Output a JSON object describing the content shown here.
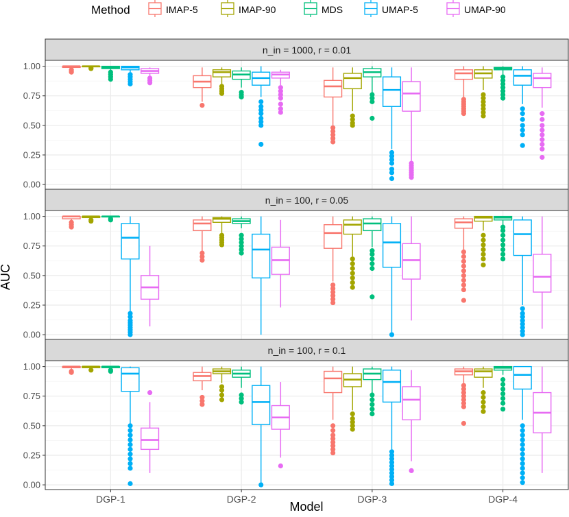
{
  "chart_data": {
    "type": "boxplot",
    "xlabel": "Model",
    "ylabel": "AUC",
    "ylim": [
      -0.04,
      1.05
    ],
    "yticks": [
      "0.00",
      "0.25",
      "0.50",
      "0.75",
      "1.00"
    ],
    "categories": [
      "DGP-1",
      "DGP-2",
      "DGP-3",
      "DGP-4"
    ],
    "legend": {
      "title": "Method",
      "position": "top",
      "entries": [
        {
          "name": "IMAP-5",
          "color": "#F8766D"
        },
        {
          "name": "IMAP-90",
          "color": "#A3A500"
        },
        {
          "name": "MDS",
          "color": "#00BF7D"
        },
        {
          "name": "UMAP-5",
          "color": "#00B0F6"
        },
        {
          "name": "UMAP-90",
          "color": "#E76BF3"
        }
      ]
    },
    "panels": [
      {
        "label": "n_in = 1000,  r = 0.01",
        "boxes": [
          [
            {
              "wlo": 0.97,
              "q1": 0.99,
              "med": 1.0,
              "q3": 1.0,
              "whi": 1.0,
              "out": [
                0.95,
                0.96,
                0.97
              ]
            },
            {
              "wlo": 0.99,
              "q1": 0.995,
              "med": 1.0,
              "q3": 1.0,
              "whi": 1.0,
              "out": [
                0.98,
                0.985
              ]
            },
            {
              "wlo": 0.97,
              "q1": 0.98,
              "med": 0.99,
              "q3": 1.0,
              "whi": 1.0,
              "out": [
                0.89,
                0.91,
                0.93,
                0.95
              ]
            },
            {
              "wlo": 0.95,
              "q1": 0.97,
              "med": 0.99,
              "q3": 1.0,
              "whi": 1.0,
              "out": [
                0.85,
                0.87,
                0.89,
                0.91,
                0.93
              ]
            },
            {
              "wlo": 0.92,
              "q1": 0.94,
              "med": 0.96,
              "q3": 0.98,
              "whi": 0.99,
              "out": [
                0.86,
                0.88,
                0.9
              ]
            }
          ],
          [
            {
              "wlo": 0.7,
              "q1": 0.82,
              "med": 0.87,
              "q3": 0.92,
              "whi": 0.99,
              "out": [
                0.67
              ]
            },
            {
              "wlo": 0.84,
              "q1": 0.91,
              "med": 0.95,
              "q3": 0.97,
              "whi": 0.99,
              "out": [
                0.77,
                0.79,
                0.81,
                0.83
              ]
            },
            {
              "wlo": 0.82,
              "q1": 0.89,
              "med": 0.93,
              "q3": 0.96,
              "whi": 0.99,
              "out": [
                0.74,
                0.76,
                0.78
              ]
            },
            {
              "wlo": 0.74,
              "q1": 0.84,
              "med": 0.9,
              "q3": 0.95,
              "whi": 1.0,
              "out": [
                0.34,
                0.5,
                0.53,
                0.56,
                0.6,
                0.63,
                0.66,
                0.7
              ]
            },
            {
              "wlo": 0.84,
              "q1": 0.9,
              "med": 0.93,
              "q3": 0.95,
              "whi": 0.97,
              "out": [
                0.61,
                0.64,
                0.68,
                0.73,
                0.76,
                0.79,
                0.82
              ]
            }
          ],
          [
            {
              "wlo": 0.5,
              "q1": 0.74,
              "med": 0.83,
              "q3": 0.88,
              "whi": 0.99,
              "out": [
                0.36,
                0.39,
                0.42,
                0.45,
                0.48
              ]
            },
            {
              "wlo": 0.62,
              "q1": 0.81,
              "med": 0.9,
              "q3": 0.94,
              "whi": 0.99,
              "out": [
                0.5,
                0.52,
                0.55,
                0.58
              ]
            },
            {
              "wlo": 0.78,
              "q1": 0.91,
              "med": 0.95,
              "q3": 0.98,
              "whi": 1.0,
              "out": [
                0.56,
                0.7,
                0.73,
                0.76
              ]
            },
            {
              "wlo": 0.3,
              "q1": 0.66,
              "med": 0.8,
              "q3": 0.91,
              "whi": 0.99,
              "out": [
                0.05,
                0.1,
                0.13,
                0.18,
                0.21,
                0.24,
                0.27
              ]
            },
            {
              "wlo": 0.2,
              "q1": 0.62,
              "med": 0.77,
              "q3": 0.87,
              "whi": 0.99,
              "out": [
                0.06,
                0.08,
                0.1,
                0.12,
                0.14,
                0.16,
                0.18
              ]
            }
          ],
          [
            {
              "wlo": 0.74,
              "q1": 0.89,
              "med": 0.94,
              "q3": 0.97,
              "whi": 1.0,
              "out": [
                0.6,
                0.62,
                0.64,
                0.66,
                0.68,
                0.7,
                0.72
              ]
            },
            {
              "wlo": 0.8,
              "q1": 0.9,
              "med": 0.94,
              "q3": 0.97,
              "whi": 1.0,
              "out": [
                0.58,
                0.61,
                0.64,
                0.67,
                0.7,
                0.73,
                0.76
              ]
            },
            {
              "wlo": 0.93,
              "q1": 0.97,
              "med": 0.98,
              "q3": 0.99,
              "whi": 1.0,
              "out": [
                0.73,
                0.76,
                0.79,
                0.82,
                0.85,
                0.88,
                0.91
              ]
            },
            {
              "wlo": 0.68,
              "q1": 0.84,
              "med": 0.92,
              "q3": 0.97,
              "whi": 1.0,
              "out": [
                0.33,
                0.42,
                0.46,
                0.5,
                0.55,
                0.6,
                0.64
              ]
            },
            {
              "wlo": 0.65,
              "q1": 0.82,
              "med": 0.9,
              "q3": 0.94,
              "whi": 0.99,
              "out": [
                0.23,
                0.3,
                0.34,
                0.38,
                0.42,
                0.46,
                0.5,
                0.55,
                0.6
              ]
            }
          ]
        ]
      },
      {
        "label": "n_in = 100,  r = 0.05",
        "boxes": [
          [
            {
              "wlo": 0.96,
              "q1": 0.98,
              "med": 1.0,
              "q3": 1.0,
              "whi": 1.0,
              "out": [
                0.91,
                0.93,
                0.95
              ]
            },
            {
              "wlo": 0.98,
              "q1": 0.99,
              "med": 1.0,
              "q3": 1.0,
              "whi": 1.0,
              "out": [
                0.96,
                0.97
              ]
            },
            {
              "wlo": 0.99,
              "q1": 0.995,
              "med": 1.0,
              "q3": 1.0,
              "whi": 1.0,
              "out": [
                0.97,
                0.98
              ]
            },
            {
              "wlo": 0.2,
              "q1": 0.64,
              "med": 0.82,
              "q3": 0.94,
              "whi": 1.0,
              "out": [
                0.0,
                0.02,
                0.04,
                0.06,
                0.08,
                0.1,
                0.12,
                0.15,
                0.18
              ]
            },
            {
              "wlo": 0.07,
              "q1": 0.3,
              "med": 0.4,
              "q3": 0.5,
              "whi": 0.75,
              "out": []
            }
          ],
          [
            {
              "wlo": 0.7,
              "q1": 0.88,
              "med": 0.94,
              "q3": 0.97,
              "whi": 1.0,
              "out": [
                0.63,
                0.66,
                0.69
              ]
            },
            {
              "wlo": 0.86,
              "q1": 0.95,
              "med": 0.98,
              "q3": 0.99,
              "whi": 1.0,
              "out": [
                0.76,
                0.78,
                0.8,
                0.82,
                0.84
              ]
            },
            {
              "wlo": 0.9,
              "q1": 0.94,
              "med": 0.96,
              "q3": 0.98,
              "whi": 1.0,
              "out": [
                0.69,
                0.72,
                0.75,
                0.78,
                0.81,
                0.84
              ]
            },
            {
              "wlo": 0.0,
              "q1": 0.48,
              "med": 0.72,
              "q3": 0.85,
              "whi": 1.0,
              "out": []
            },
            {
              "wlo": 0.23,
              "q1": 0.51,
              "med": 0.63,
              "q3": 0.74,
              "whi": 0.97,
              "out": []
            }
          ],
          [
            {
              "wlo": 0.45,
              "q1": 0.73,
              "med": 0.86,
              "q3": 0.93,
              "whi": 1.0,
              "out": [
                0.27,
                0.3,
                0.33,
                0.36,
                0.39,
                0.42
              ]
            },
            {
              "wlo": 0.66,
              "q1": 0.85,
              "med": 0.93,
              "q3": 0.97,
              "whi": 1.0,
              "out": [
                0.4,
                0.44,
                0.48,
                0.52,
                0.56,
                0.6,
                0.64
              ]
            },
            {
              "wlo": 0.74,
              "q1": 0.88,
              "med": 0.94,
              "q3": 0.98,
              "whi": 1.0,
              "out": [
                0.32,
                0.56,
                0.6,
                0.64,
                0.68,
                0.71
              ]
            },
            {
              "wlo": 0.02,
              "q1": 0.57,
              "med": 0.78,
              "q3": 0.94,
              "whi": 1.0,
              "out": [
                0.0
              ]
            },
            {
              "wlo": 0.12,
              "q1": 0.47,
              "med": 0.63,
              "q3": 0.77,
              "whi": 1.0,
              "out": []
            }
          ],
          [
            {
              "wlo": 0.72,
              "q1": 0.9,
              "med": 0.95,
              "q3": 0.98,
              "whi": 1.0,
              "out": [
                0.29,
                0.38,
                0.42,
                0.46,
                0.5,
                0.54,
                0.58,
                0.62,
                0.66,
                0.7
              ]
            },
            {
              "wlo": 0.88,
              "q1": 0.96,
              "med": 0.99,
              "q3": 1.0,
              "whi": 1.0,
              "out": [
                0.59,
                0.64,
                0.68,
                0.72,
                0.76,
                0.8,
                0.84
              ]
            },
            {
              "wlo": 0.93,
              "q1": 0.97,
              "med": 0.99,
              "q3": 1.0,
              "whi": 1.0,
              "out": [
                0.64,
                0.68,
                0.72,
                0.76,
                0.8,
                0.84,
                0.88,
                0.91
              ]
            },
            {
              "wlo": 0.25,
              "q1": 0.67,
              "med": 0.85,
              "q3": 0.97,
              "whi": 1.0,
              "out": [
                0.0,
                0.03,
                0.06,
                0.09,
                0.12,
                0.15,
                0.18,
                0.22
              ]
            },
            {
              "wlo": 0.05,
              "q1": 0.36,
              "med": 0.49,
              "q3": 0.68,
              "whi": 1.0,
              "out": []
            }
          ]
        ]
      },
      {
        "label": "n_in = 100,  r = 0.1",
        "boxes": [
          [
            {
              "wlo": 0.97,
              "q1": 0.99,
              "med": 1.0,
              "q3": 1.0,
              "whi": 1.0,
              "out": [
                0.95,
                0.96
              ]
            },
            {
              "wlo": 0.98,
              "q1": 0.99,
              "med": 1.0,
              "q3": 1.0,
              "whi": 1.0,
              "out": [
                0.97
              ]
            },
            {
              "wlo": 0.98,
              "q1": 0.99,
              "med": 1.0,
              "q3": 1.0,
              "whi": 1.0,
              "out": [
                0.96,
                0.97
              ]
            },
            {
              "wlo": 0.52,
              "q1": 0.79,
              "med": 0.94,
              "q3": 0.99,
              "whi": 1.0,
              "out": [
                0.01,
                0.14,
                0.18,
                0.22,
                0.26,
                0.3,
                0.34,
                0.38,
                0.42,
                0.46,
                0.5
              ]
            },
            {
              "wlo": 0.1,
              "q1": 0.3,
              "med": 0.38,
              "q3": 0.48,
              "whi": 0.7,
              "out": [
                0.78
              ]
            }
          ],
          [
            {
              "wlo": 0.8,
              "q1": 0.88,
              "med": 0.92,
              "q3": 0.95,
              "whi": 1.0,
              "out": [
                0.68,
                0.71,
                0.74
              ]
            },
            {
              "wlo": 0.86,
              "q1": 0.94,
              "med": 0.96,
              "q3": 0.98,
              "whi": 1.0,
              "out": [
                0.72,
                0.76,
                0.8,
                0.83
              ]
            },
            {
              "wlo": 0.82,
              "q1": 0.91,
              "med": 0.94,
              "q3": 0.97,
              "whi": 1.0,
              "out": [
                0.7,
                0.73,
                0.76
              ]
            },
            {
              "wlo": 0.0,
              "q1": 0.51,
              "med": 0.7,
              "q3": 0.84,
              "whi": 1.0,
              "out": [
                0.0
              ]
            },
            {
              "wlo": 0.23,
              "q1": 0.47,
              "med": 0.57,
              "q3": 0.67,
              "whi": 0.87,
              "out": [
                0.16
              ]
            }
          ],
          [
            {
              "wlo": 0.55,
              "q1": 0.78,
              "med": 0.9,
              "q3": 0.96,
              "whi": 1.0,
              "out": [
                0.27,
                0.3,
                0.33,
                0.36,
                0.39,
                0.42,
                0.46,
                0.5
              ]
            },
            {
              "wlo": 0.63,
              "q1": 0.83,
              "med": 0.89,
              "q3": 0.94,
              "whi": 1.0,
              "out": [
                0.47,
                0.5,
                0.53,
                0.56,
                0.6
              ]
            },
            {
              "wlo": 0.78,
              "q1": 0.89,
              "med": 0.94,
              "q3": 0.98,
              "whi": 1.0,
              "out": [
                0.6,
                0.64,
                0.68,
                0.72,
                0.76
              ]
            },
            {
              "wlo": 0.3,
              "q1": 0.7,
              "med": 0.87,
              "q3": 0.97,
              "whi": 1.0,
              "out": [
                0.01,
                0.04,
                0.07,
                0.1,
                0.13,
                0.16,
                0.19,
                0.22,
                0.25,
                0.28
              ]
            },
            {
              "wlo": 0.2,
              "q1": 0.55,
              "med": 0.72,
              "q3": 0.83,
              "whi": 0.97,
              "out": [
                0.12
              ]
            }
          ],
          [
            {
              "wlo": 0.86,
              "q1": 0.93,
              "med": 0.96,
              "q3": 0.98,
              "whi": 1.0,
              "out": [
                0.52,
                0.66,
                0.69,
                0.72,
                0.75,
                0.78,
                0.81,
                0.84
              ]
            },
            {
              "wlo": 0.82,
              "q1": 0.91,
              "med": 0.96,
              "q3": 0.98,
              "whi": 1.0,
              "out": [
                0.62,
                0.66,
                0.7,
                0.74,
                0.78
              ]
            },
            {
              "wlo": 0.93,
              "q1": 0.97,
              "med": 0.99,
              "q3": 1.0,
              "whi": 1.0,
              "out": [
                0.64,
                0.69,
                0.73,
                0.77,
                0.81,
                0.85,
                0.89
              ]
            },
            {
              "wlo": 0.55,
              "q1": 0.81,
              "med": 0.93,
              "q3": 1.0,
              "whi": 1.0,
              "out": [
                0.02,
                0.06,
                0.1,
                0.14,
                0.18,
                0.22,
                0.26,
                0.3,
                0.34,
                0.38,
                0.42,
                0.46,
                0.5
              ]
            },
            {
              "wlo": 0.1,
              "q1": 0.44,
              "med": 0.61,
              "q3": 0.78,
              "whi": 1.0,
              "out": []
            }
          ]
        ]
      }
    ]
  }
}
